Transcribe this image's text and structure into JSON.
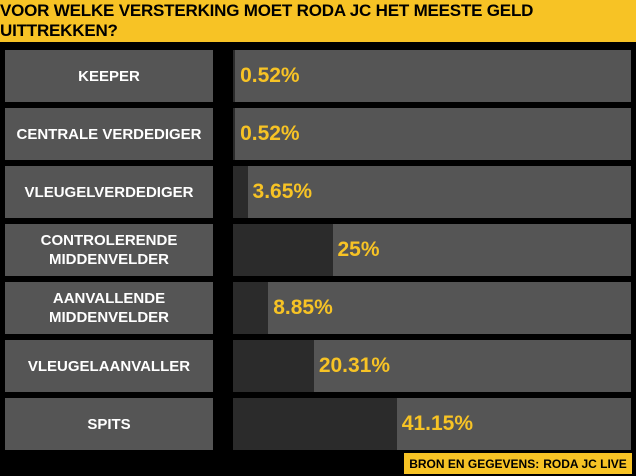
{
  "chart_data": {
    "type": "bar",
    "title": "VOOR WELKE VERSTERKING MOET RODA JC HET MEESTE GELD UITTREKKEN?",
    "categories": [
      "KEEPER",
      "CENTRALE VERDEDIGER",
      "VLEUGELVERDEDIGER",
      "CONTROLERENDE MIDDENVELDER",
      "AANVALLENDE MIDDENVELDER",
      "VLEUGELAANVALLER",
      "SPITS"
    ],
    "values": [
      0.52,
      0.52,
      3.65,
      25,
      8.85,
      20.31,
      41.15
    ],
    "value_labels": [
      "0.52%",
      "0.52%",
      "3.65%",
      "25%",
      "8.85%",
      "20.31%",
      "41.15%"
    ],
    "xlim": [
      0,
      100
    ],
    "color": "#2b2b2b",
    "track_color": "#555555",
    "label_color": "#f7c325",
    "source_label": "BRON EN GEGEVENS:",
    "source": "RODA JC LIVE"
  }
}
